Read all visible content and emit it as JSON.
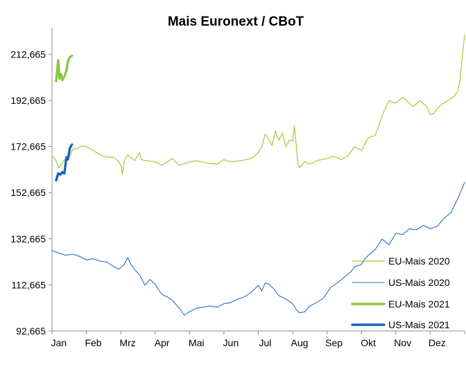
{
  "chart_data": {
    "type": "line",
    "title": "Mais Euronext / CBoT",
    "xlabel": "",
    "ylabel": "",
    "ylim": [
      92.665,
      222.665
    ],
    "yticks": [
      "212,665",
      "192,665",
      "172,665",
      "152,665",
      "132,665",
      "112,665",
      "92,665"
    ],
    "ytick_values": [
      212.665,
      192.665,
      172.665,
      152.665,
      132.665,
      112.665,
      92.665
    ],
    "xlim": [
      0,
      12
    ],
    "months": [
      "Jan",
      "Feb",
      "Mrz",
      "Apr",
      "Mai",
      "Jun",
      "Jul",
      "Aug",
      "Sep",
      "Okt",
      "Nov",
      "Dez"
    ],
    "grid": false,
    "legend_position": "bottom-right",
    "colors": {
      "eu2020": "#9ACD32",
      "us2020": "#1F6FCC",
      "eu2021": "#8CC63F",
      "us2021": "#1565C0"
    },
    "series": [
      {
        "name": "EU-Mais 2020",
        "color": "#9ACD32",
        "width": 1.2,
        "x": [
          0.0,
          0.1,
          0.2,
          0.3,
          0.4,
          0.5,
          0.6,
          0.75,
          0.9,
          1.0,
          1.2,
          1.4,
          1.6,
          1.8,
          1.95,
          2.02,
          2.05,
          2.1,
          2.2,
          2.4,
          2.55,
          2.6,
          2.75,
          3.0,
          3.2,
          3.4,
          3.5,
          3.7,
          4.0,
          4.2,
          4.5,
          4.8,
          5.0,
          5.2,
          5.5,
          5.8,
          6.0,
          6.1,
          6.2,
          6.3,
          6.4,
          6.5,
          6.55,
          6.6,
          6.7,
          6.8,
          6.9,
          7.0,
          7.05,
          7.1,
          7.15,
          7.2,
          7.35,
          7.5,
          7.7,
          8.0,
          8.2,
          8.4,
          8.6,
          8.8,
          9.0,
          9.2,
          9.4,
          9.5,
          9.6,
          9.8,
          10.0,
          10.2,
          10.5,
          10.7,
          10.9,
          11.0,
          11.1,
          11.2,
          11.3,
          11.5,
          11.7,
          11.8,
          11.85,
          11.9,
          12.0
        ],
        "y": [
          168.5,
          167,
          163.5,
          165.5,
          167.5,
          168,
          171.5,
          172,
          173,
          172.5,
          171,
          169,
          168,
          168,
          166,
          163.5,
          160.5,
          166.5,
          169,
          166.5,
          170,
          167,
          166.5,
          166,
          164.5,
          166.5,
          167.5,
          164.5,
          166,
          166.5,
          165.5,
          165,
          167,
          166,
          166.5,
          167.5,
          170,
          172.5,
          178,
          176,
          173,
          179.5,
          177,
          175.5,
          178.5,
          172.5,
          175.5,
          175,
          181.5,
          174,
          165.5,
          163.5,
          166,
          165,
          166.5,
          167.5,
          168.5,
          167,
          168.5,
          172.5,
          171,
          176.5,
          177.5,
          181.5,
          186,
          192.5,
          191.5,
          194,
          190,
          192.5,
          190,
          186.5,
          187,
          189,
          190.5,
          192.5,
          194.5,
          196.5,
          200,
          206.5,
          221
        ]
      },
      {
        "name": "US-Mais 2020",
        "color": "#1F6FCC",
        "width": 1.1,
        "x": [
          0.0,
          0.2,
          0.4,
          0.6,
          0.8,
          1.0,
          1.2,
          1.4,
          1.6,
          1.8,
          1.95,
          2.1,
          2.2,
          2.3,
          2.45,
          2.55,
          2.7,
          2.85,
          3.0,
          3.1,
          3.2,
          3.35,
          3.5,
          3.7,
          3.85,
          4.0,
          4.2,
          4.4,
          4.6,
          4.8,
          5.0,
          5.2,
          5.4,
          5.6,
          5.8,
          6.0,
          6.1,
          6.2,
          6.3,
          6.45,
          6.6,
          6.8,
          7.0,
          7.1,
          7.2,
          7.35,
          7.5,
          7.7,
          7.9,
          8.1,
          8.3,
          8.5,
          8.7,
          8.8,
          9.0,
          9.1,
          9.2,
          9.4,
          9.6,
          9.8,
          10.0,
          10.2,
          10.4,
          10.6,
          10.8,
          11.0,
          11.2,
          11.4,
          11.6,
          11.8,
          12.0
        ],
        "y": [
          127.5,
          126.5,
          125.5,
          126,
          125,
          123.5,
          124,
          123,
          122.5,
          120.5,
          119.5,
          121.5,
          124.5,
          121.5,
          118.5,
          117,
          112.5,
          115,
          113,
          110.5,
          108.5,
          107.5,
          106,
          102.5,
          99.5,
          101,
          102.5,
          103,
          103.5,
          103,
          104.5,
          105,
          106.5,
          107.5,
          109.5,
          112.5,
          110,
          113.5,
          113,
          111,
          108,
          106.5,
          104.5,
          102,
          100.5,
          101,
          103.5,
          105,
          107,
          111.5,
          113.5,
          116,
          118.5,
          120.5,
          121.5,
          124,
          125.5,
          128,
          132.5,
          130,
          135,
          134.5,
          137,
          136.5,
          138.5,
          137,
          138,
          141.5,
          144,
          150,
          157
        ]
      },
      {
        "name": "EU-Mais 2021",
        "color": "#8CC63F",
        "width": 3.4,
        "x": [
          0.12,
          0.18,
          0.22,
          0.26,
          0.3,
          0.36,
          0.42,
          0.46,
          0.52,
          0.58
        ],
        "y": [
          201,
          210,
          202,
          204,
          201.5,
          203,
          205.5,
          209.5,
          211.5,
          212
        ]
      },
      {
        "name": "US-Mais 2021",
        "color": "#1565C0",
        "width": 3.4,
        "x": [
          0.12,
          0.18,
          0.24,
          0.3,
          0.36,
          0.42,
          0.46,
          0.52,
          0.58
        ],
        "y": [
          158,
          161,
          160.5,
          161.5,
          161,
          168,
          167,
          172,
          173.5
        ]
      }
    ]
  }
}
